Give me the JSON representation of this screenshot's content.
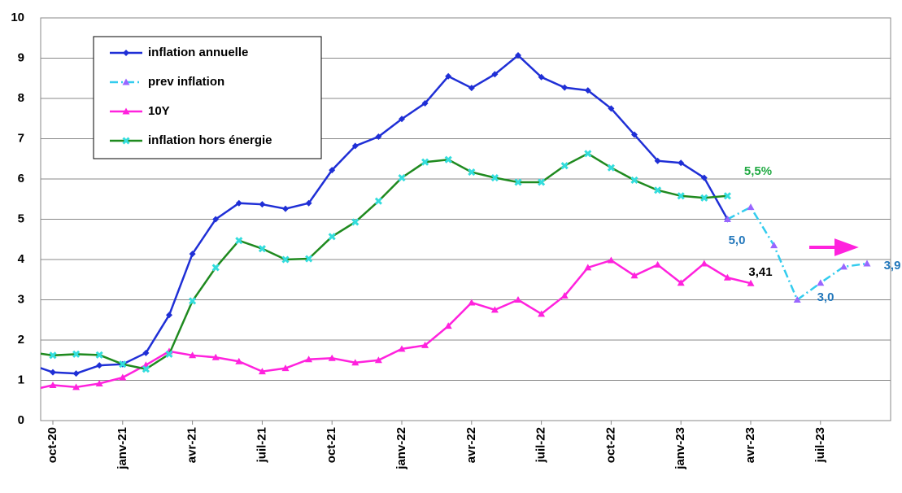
{
  "chart_data": {
    "type": "line",
    "categories": [
      null,
      "oct-20",
      null,
      null,
      "janv-21",
      null,
      null,
      "avr-21",
      null,
      null,
      "juil-21",
      null,
      null,
      "oct-21",
      null,
      null,
      "janv-22",
      null,
      null,
      "avr-22",
      null,
      null,
      "juil-22",
      null,
      null,
      "oct-22",
      null,
      null,
      "janv-23",
      null,
      null,
      "avr-23",
      null,
      null,
      "juil-23",
      null,
      null
    ],
    "series": [
      {
        "name": "inflation annuelle",
        "color": "#1f2fd6",
        "marker": "diamond",
        "dash": "solid",
        "values": [
          1.4,
          1.2,
          1.17,
          1.37,
          1.4,
          1.68,
          2.62,
          4.14,
          5.0,
          5.4,
          5.37,
          5.26,
          5.4,
          6.22,
          6.82,
          7.05,
          7.49,
          7.88,
          8.55,
          8.26,
          8.6,
          9.07,
          8.53,
          8.27,
          8.2,
          7.75,
          7.1,
          6.45,
          6.4,
          6.03,
          5.0,
          null,
          null,
          null,
          null,
          null,
          null
        ]
      },
      {
        "name": "prev inflation",
        "color": "#33ccee",
        "marker_color": "#9966ff",
        "marker": "triangle",
        "dash": "dashdot",
        "values": [
          null,
          null,
          null,
          null,
          null,
          null,
          null,
          null,
          null,
          null,
          null,
          null,
          null,
          null,
          null,
          null,
          null,
          null,
          null,
          null,
          null,
          null,
          null,
          null,
          null,
          null,
          null,
          null,
          null,
          null,
          5.0,
          5.3,
          4.35,
          3.0,
          3.42,
          3.82,
          3.9
        ]
      },
      {
        "name": "10Y",
        "color": "#ff22dd",
        "marker": "triangle",
        "dash": "solid",
        "values": [
          0.75,
          0.88,
          0.83,
          0.92,
          1.07,
          1.38,
          1.72,
          1.62,
          1.57,
          1.47,
          1.22,
          1.3,
          1.52,
          1.55,
          1.44,
          1.5,
          1.78,
          1.87,
          2.35,
          2.93,
          2.75,
          3.0,
          2.65,
          3.1,
          3.8,
          3.98,
          3.6,
          3.87,
          3.42,
          3.9,
          3.55,
          3.41,
          null,
          null,
          null,
          null,
          null
        ]
      },
      {
        "name": "inflation hors énergie",
        "color": "#1f8a1f",
        "marker_color": "#33dddd",
        "marker": "x",
        "dash": "solid",
        "values": [
          1.7,
          1.62,
          1.65,
          1.63,
          1.4,
          1.28,
          1.65,
          2.97,
          3.8,
          4.47,
          4.27,
          4.0,
          4.02,
          4.57,
          4.93,
          5.45,
          6.03,
          6.42,
          6.48,
          6.17,
          6.03,
          5.92,
          5.92,
          6.33,
          6.63,
          6.28,
          5.97,
          5.72,
          5.58,
          5.53,
          5.58,
          null,
          null,
          null,
          null,
          null,
          null
        ]
      }
    ],
    "annotations": [
      {
        "text": "5,5%",
        "color": "#22aa44"
      },
      {
        "text": "5,0",
        "color": "#2277bb"
      },
      {
        "text": "3,41",
        "color": "#000000"
      },
      {
        "text": "3,0",
        "color": "#2277bb"
      },
      {
        "text": "3,9",
        "color": "#2277bb"
      }
    ],
    "ylim": [
      0,
      10
    ],
    "yticks": [
      0,
      1,
      2,
      3,
      4,
      5,
      6,
      7,
      8,
      9,
      10
    ],
    "grid": true
  }
}
